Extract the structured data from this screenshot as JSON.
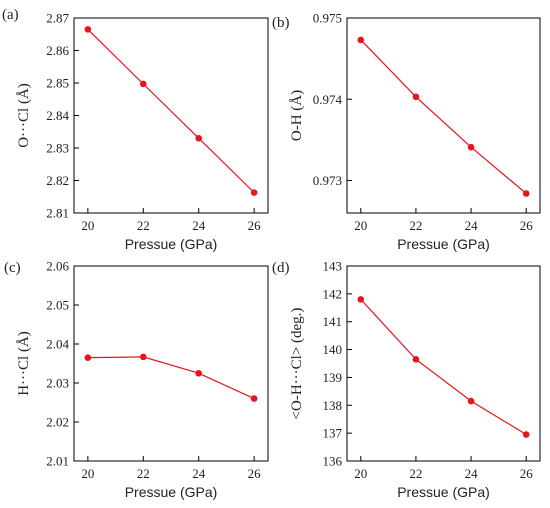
{
  "chart_data": [
    {
      "panel": "(a)",
      "type": "line",
      "x": [
        20,
        22,
        24,
        26
      ],
      "y": [
        2.8665,
        2.8497,
        2.833,
        2.8163
      ],
      "xlabel": "Pressue (GPa)",
      "ylabel": "O···Cl (Å)",
      "xlim": [
        19.5,
        26.5
      ],
      "ylim": [
        2.81,
        2.87
      ],
      "xticks": [
        "20",
        "22",
        "24",
        "26"
      ],
      "yticks": [
        "2.81",
        "2.82",
        "2.83",
        "2.84",
        "2.85",
        "2.86",
        "2.87"
      ],
      "color": "#e8141b"
    },
    {
      "panel": "(b)",
      "type": "line",
      "x": [
        20,
        22,
        24,
        26
      ],
      "y": [
        0.97473,
        0.97403,
        0.97341,
        0.97284
      ],
      "xlabel": "Pressue (GPa)",
      "ylabel": "O-H (Å)",
      "xlim": [
        19.5,
        26.5
      ],
      "ylim": [
        0.9726,
        0.975
      ],
      "xticks": [
        "20",
        "22",
        "24",
        "26"
      ],
      "yticks": [
        "0.973",
        "0.974",
        "0.975"
      ],
      "color": "#e8141b"
    },
    {
      "panel": "(c)",
      "type": "line",
      "x": [
        20,
        22,
        24,
        26
      ],
      "y": [
        2.0365,
        2.0367,
        2.0325,
        2.026
      ],
      "xlabel": "Pressue (GPa)",
      "ylabel": "H···Cl (Å)",
      "xlim": [
        19.5,
        26.5
      ],
      "ylim": [
        2.01,
        2.06
      ],
      "xticks": [
        "20",
        "22",
        "24",
        "26"
      ],
      "yticks": [
        "2.01",
        "2.02",
        "2.03",
        "2.04",
        "2.05",
        "2.06"
      ],
      "color": "#e8141b"
    },
    {
      "panel": "(d)",
      "type": "line",
      "x": [
        20,
        22,
        24,
        26
      ],
      "y": [
        141.8,
        139.65,
        138.15,
        136.95
      ],
      "xlabel": "Pressue (GPa)",
      "ylabel": "<O-H···Cl> (deg.)",
      "xlim": [
        19.5,
        26.5
      ],
      "ylim": [
        136,
        143
      ],
      "xticks": [
        "20",
        "22",
        "24",
        "26"
      ],
      "yticks": [
        "136",
        "137",
        "138",
        "139",
        "140",
        "141",
        "142",
        "143"
      ],
      "color": "#e8141b"
    }
  ]
}
